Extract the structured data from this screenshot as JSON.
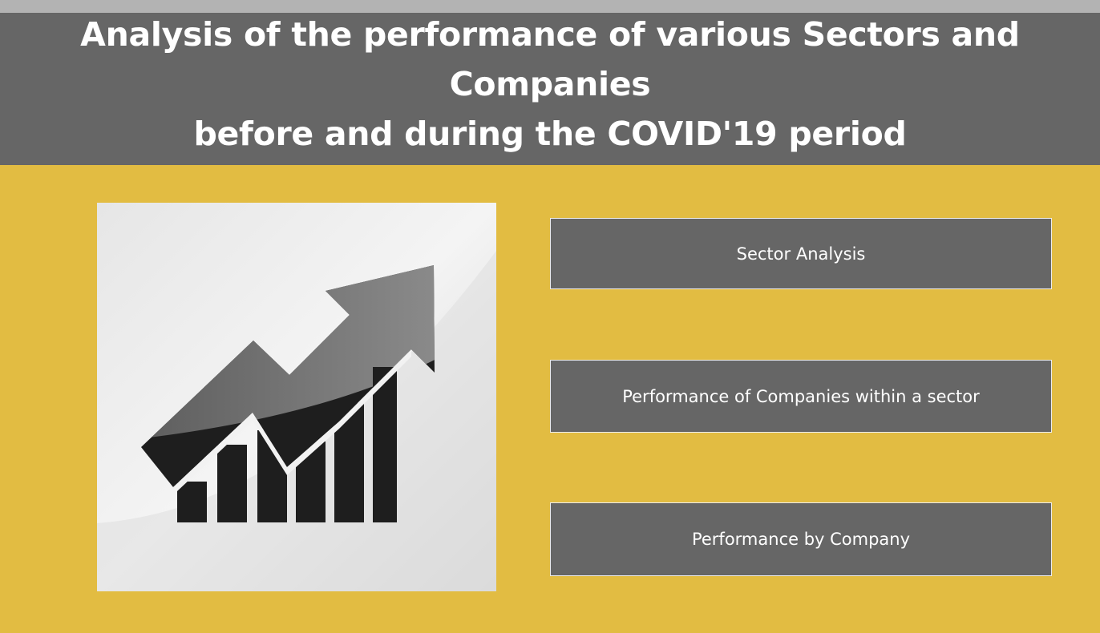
{
  "header": {
    "title": "Analysis of the performance of various Sectors and Companies\nbefore and during the COVID'19 period"
  },
  "logo": {
    "icon": "rising-bar-chart-arrow-icon"
  },
  "navigation": {
    "buttons": [
      {
        "label": "Sector Analysis"
      },
      {
        "label": "Performance of Companies within a sector"
      },
      {
        "label": "Performance by Company"
      }
    ]
  },
  "colors": {
    "background": "#E2BC42",
    "header": "#666666",
    "top_strip": "#B3B3B3",
    "button": "#666666",
    "text": "#FFFFFF"
  }
}
